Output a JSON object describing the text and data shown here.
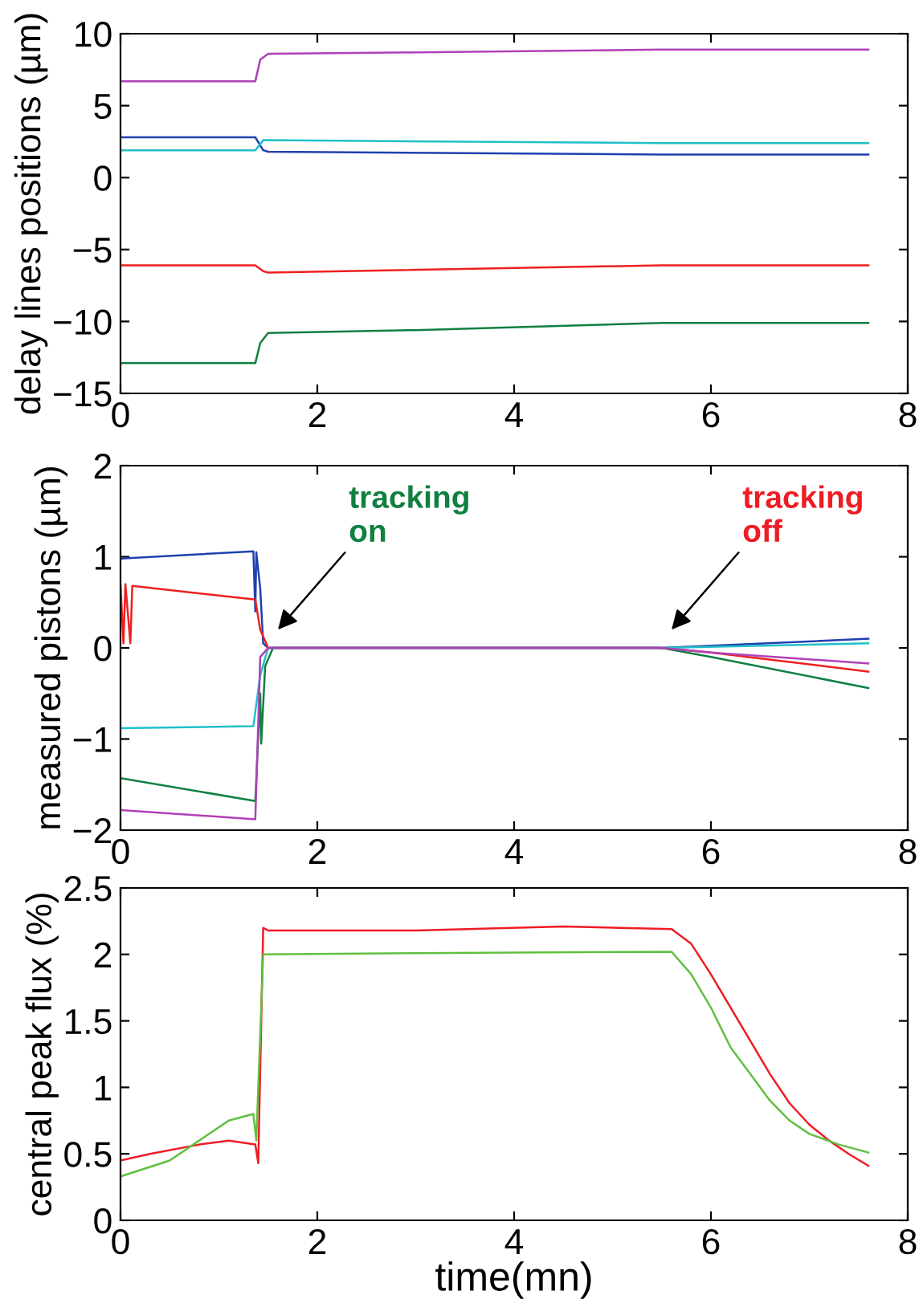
{
  "chart_data": [
    {
      "type": "line",
      "ylabel": "delay lines positions (µm)",
      "xlim": [
        0,
        8
      ],
      "xticks": [
        0,
        2,
        4,
        6,
        8
      ],
      "ylim": [
        -15,
        10
      ],
      "yticks": [
        -15,
        -10,
        -5,
        0,
        5,
        10
      ],
      "grid": false,
      "series": [
        {
          "color": "#b040b8",
          "x": [
            0,
            1.37,
            1.42,
            1.5,
            3,
            5.5,
            7.6
          ],
          "values": [
            6.7,
            6.7,
            8.2,
            8.6,
            8.7,
            8.9,
            8.9
          ]
        },
        {
          "color": "#2040b0",
          "x": [
            0,
            1.37,
            1.45,
            1.5,
            5.5,
            7.6
          ],
          "values": [
            2.8,
            2.8,
            1.9,
            1.8,
            1.6,
            1.6
          ]
        },
        {
          "color": "#20c0c8",
          "x": [
            0,
            1.37,
            1.45,
            5.5,
            7.6
          ],
          "values": [
            1.9,
            1.9,
            2.6,
            2.4,
            2.4
          ]
        },
        {
          "color": "#ee2020",
          "x": [
            0,
            1.37,
            1.45,
            1.5,
            5.5,
            7.6
          ],
          "values": [
            -6.1,
            -6.1,
            -6.5,
            -6.6,
            -6.1,
            -6.1
          ]
        },
        {
          "color": "#108040",
          "x": [
            0,
            1.37,
            1.42,
            1.5,
            3,
            5.5,
            7.6
          ],
          "values": [
            -12.9,
            -12.9,
            -11.5,
            -10.8,
            -10.6,
            -10.1,
            -10.1
          ]
        }
      ]
    },
    {
      "type": "line",
      "ylabel": "measured pistons (µm)",
      "xlim": [
        0,
        8
      ],
      "xticks": [
        0,
        2,
        4,
        6,
        8
      ],
      "ylim": [
        -2,
        2
      ],
      "yticks": [
        -2,
        -1,
        0,
        1,
        2
      ],
      "grid": false,
      "annotations": [
        "tracking\non",
        "tracking\noff"
      ],
      "series": [
        {
          "color": "#2040b0",
          "x": [
            0,
            1.35,
            1.37,
            1.38,
            1.42,
            1.45,
            1.5,
            5.5,
            7.6
          ],
          "values": [
            0.98,
            1.06,
            0.4,
            1.05,
            0.65,
            0.05,
            0,
            0,
            0.1
          ]
        },
        {
          "color": "#ee2020",
          "x": [
            0,
            0.03,
            0.05,
            0.1,
            0.12,
            1.37,
            1.42,
            1.5,
            5.5,
            6,
            7.6
          ],
          "values": [
            0.7,
            0.05,
            0.7,
            0.05,
            0.68,
            0.53,
            0.2,
            0,
            0,
            -0.05,
            -0.26
          ]
        },
        {
          "color": "#20c0c8",
          "x": [
            0,
            1.35,
            1.42,
            1.5,
            5.5,
            7.6
          ],
          "values": [
            -0.88,
            -0.86,
            -0.3,
            0,
            0,
            0.05
          ]
        },
        {
          "color": "#108040",
          "x": [
            0,
            1.37,
            1.42,
            1.43,
            1.47,
            1.55,
            5.5,
            6,
            7.6
          ],
          "values": [
            -1.43,
            -1.68,
            -0.5,
            -1.05,
            -0.2,
            0,
            0,
            -0.1,
            -0.44
          ]
        },
        {
          "color": "#b040b8",
          "x": [
            0,
            1.37,
            1.42,
            1.5,
            5.5,
            6,
            7.6
          ],
          "values": [
            -1.78,
            -1.88,
            -0.1,
            0,
            0,
            -0.05,
            -0.17
          ]
        }
      ]
    },
    {
      "type": "line",
      "xlabel": "time(mn)",
      "ylabel": "central peak flux (%)",
      "xlim": [
        0,
        8
      ],
      "xticks": [
        0,
        2,
        4,
        6,
        8
      ],
      "ylim": [
        0,
        2.5
      ],
      "yticks": [
        0,
        0.5,
        1,
        1.5,
        2,
        2.5
      ],
      "grid": false,
      "series": [
        {
          "color": "#ee1c24",
          "x": [
            0,
            0.3,
            0.8,
            1.1,
            1.37,
            1.4,
            1.45,
            1.5,
            3,
            4.5,
            5.6,
            5.8,
            6,
            6.2,
            6.4,
            6.6,
            6.8,
            7,
            7.2,
            7.4,
            7.6
          ],
          "values": [
            0.45,
            0.5,
            0.57,
            0.6,
            0.57,
            0.43,
            2.2,
            2.18,
            2.18,
            2.21,
            2.19,
            2.08,
            1.85,
            1.6,
            1.35,
            1.1,
            0.88,
            0.72,
            0.6,
            0.5,
            0.41
          ]
        },
        {
          "color": "#60c040",
          "x": [
            0,
            0.5,
            0.8,
            1.1,
            1.35,
            1.38,
            1.45,
            3,
            5.6,
            5.8,
            6,
            6.2,
            6.4,
            6.6,
            6.8,
            7,
            7.3,
            7.6
          ],
          "values": [
            0.33,
            0.45,
            0.6,
            0.75,
            0.8,
            0.6,
            2.0,
            2.01,
            2.02,
            1.85,
            1.6,
            1.3,
            1.1,
            0.9,
            0.75,
            0.65,
            0.57,
            0.51
          ]
        }
      ]
    }
  ]
}
